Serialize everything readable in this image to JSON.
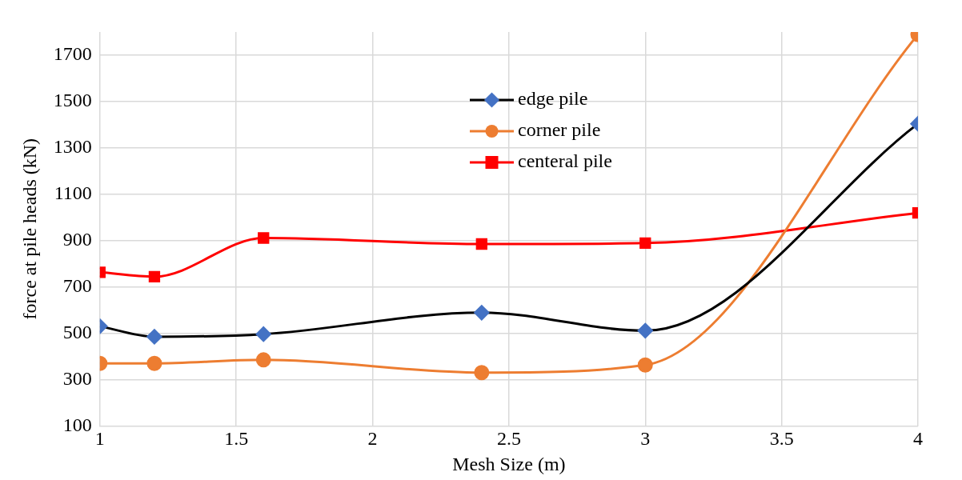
{
  "chart_data": {
    "type": "line",
    "xlabel": "Mesh Size (m)",
    "ylabel": "force at pile heads (kN)",
    "x": [
      1,
      1.2,
      1.6,
      2.4,
      3,
      4
    ],
    "series": [
      {
        "name": "edge pile",
        "color": "#000000",
        "colors": [
          "#4472c4",
          "#4472c4",
          "#4472c4",
          "#4472c4",
          "#4472c4",
          "#4472c4"
        ],
        "marker": "diamond",
        "values": [
          530,
          485,
          496,
          589,
          511,
          1404
        ]
      },
      {
        "name": "corner pile",
        "color": "#ed7d31",
        "marker": "circle",
        "values": [
          370,
          370,
          385,
          330,
          363,
          1789
        ]
      },
      {
        "name": "centeral pile",
        "color": "#ff0000",
        "marker": "square",
        "values": [
          763,
          744,
          911,
          885,
          889,
          1019
        ]
      }
    ],
    "xlim": [
      1,
      4
    ],
    "xticks": [
      1,
      1.5,
      2,
      2.5,
      3,
      3.5,
      4
    ],
    "ylim": [
      100,
      1800
    ],
    "yticks": [
      100,
      300,
      500,
      700,
      900,
      1100,
      1300,
      1500,
      1700
    ],
    "grid": true,
    "legend": "top"
  }
}
